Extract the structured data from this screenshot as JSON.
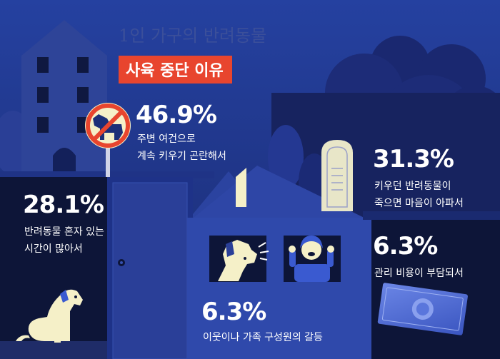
{
  "chart_data": {
    "type": "table",
    "title": "1인 가구의 반려동물",
    "subtitle": "사육 중단 이유",
    "items": [
      {
        "value": "46.9%",
        "label_lines": [
          "주변 여건으로",
          "계속 키우기 곤란해서"
        ]
      },
      {
        "value": "31.3%",
        "label_lines": [
          "키우던 반려동물이",
          "죽으면 마음이 아파서"
        ]
      },
      {
        "value": "28.1%",
        "label_lines": [
          "반려동물 혼자 있는",
          "시간이 많아서"
        ]
      },
      {
        "value": "6.3%",
        "label_lines": [
          "관리 비용이 부담되서"
        ]
      },
      {
        "value": "6.3%",
        "label_lines": [
          "이웃이나 가족 구성원의 갈등"
        ]
      }
    ]
  },
  "colors": {
    "background": "#1c2f78",
    "accent": "#e8452e",
    "cream": "#f5f0c8",
    "dark_navy": "#0d1538"
  }
}
